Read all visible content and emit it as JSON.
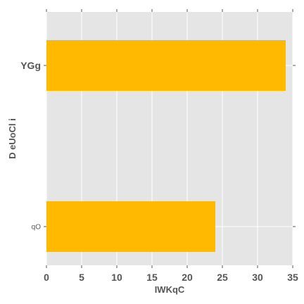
{
  "chart_data": {
    "type": "bar",
    "orientation": "horizontal",
    "categories": [
      "YGg",
      "qO"
    ],
    "values": [
      34,
      24
    ],
    "xlabel": "IWKqC",
    "ylabel": "D eUoCl i",
    "xlim": [
      0,
      35
    ],
    "x_ticks": [
      "0",
      "5",
      "10",
      "15",
      "20",
      "25",
      "30",
      "35"
    ],
    "grid": true,
    "legend": "none",
    "colors": {
      "bar": "#ffba00",
      "panel": "#e5e5e5",
      "grid": "#ffffff",
      "text": "#555555"
    }
  }
}
